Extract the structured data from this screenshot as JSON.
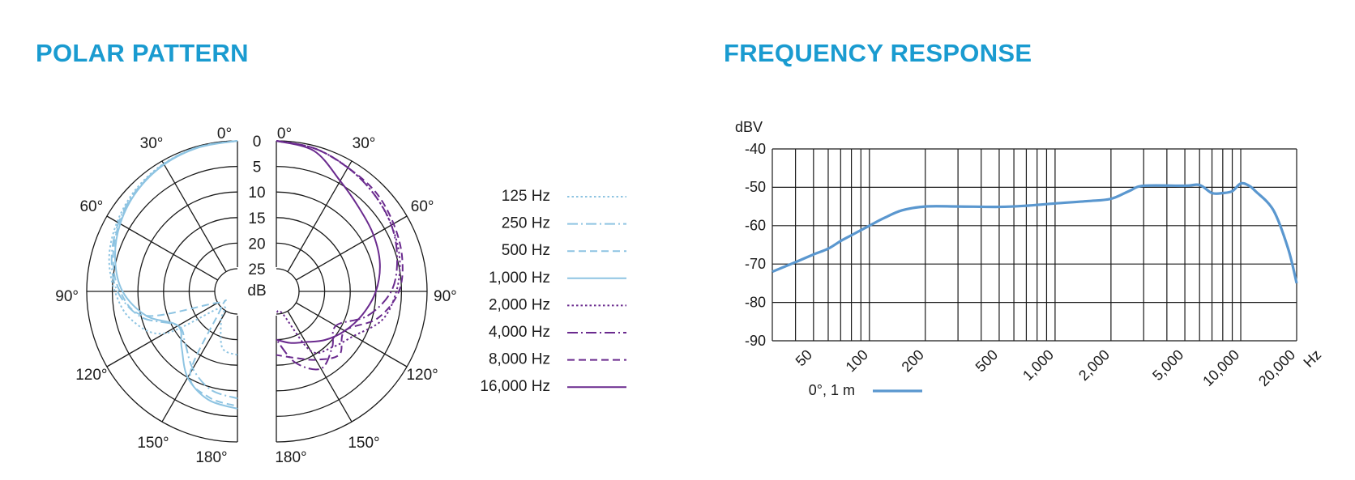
{
  "polar_pattern": {
    "title": "POLAR PATTERN"
  },
  "frequency_response": {
    "title": "FREQUENCY RESPONSE"
  },
  "colors": {
    "title": "#1a9bd0",
    "light_blue": "#8ec4e2",
    "purple": "#6a2a8e",
    "response_line": "#5a97cf",
    "grid": "#1a1a1a"
  },
  "chart_data": [
    {
      "type": "polar",
      "title": "POLAR PATTERN",
      "radial_unit": "dB",
      "radial_ticks": [
        "0",
        "5",
        "10",
        "15",
        "20",
        "25"
      ],
      "angle_labels": {
        "left": [
          "0°",
          "30°",
          "60°",
          "90°",
          "120°",
          "150°",
          "180°"
        ],
        "right": [
          "0°",
          "30°",
          "60°",
          "90°",
          "120°",
          "150°",
          "180°"
        ]
      },
      "series": [
        {
          "name": "125 Hz",
          "side": "left",
          "style": "dotted",
          "color": "#8ec4e2",
          "angles": [
            0,
            15,
            30,
            45,
            60,
            75,
            90,
            105,
            120,
            135,
            150,
            165,
            180
          ],
          "db": [
            0,
            0.2,
            0.6,
            1.3,
            2.3,
            3.5,
            5.5,
            8,
            13,
            25,
            23,
            18,
            17
          ]
        },
        {
          "name": "250 Hz",
          "side": "left",
          "style": "dashdot",
          "color": "#8ec4e2",
          "angles": [
            0,
            15,
            30,
            45,
            60,
            75,
            90,
            105,
            120,
            135,
            150,
            165,
            180
          ],
          "db": [
            0,
            0.2,
            0.7,
            1.5,
            2.6,
            4,
            6,
            10,
            16,
            15,
            12,
            9.5,
            8.5
          ]
        },
        {
          "name": "500 Hz",
          "side": "left",
          "style": "dashed",
          "color": "#8ec4e2",
          "angles": [
            0,
            15,
            30,
            45,
            60,
            75,
            90,
            105,
            120,
            135,
            150,
            165,
            180
          ],
          "db": [
            0,
            0.2,
            0.7,
            1.6,
            2.8,
            4.3,
            6.5,
            11,
            25,
            25,
            11,
            8,
            7
          ]
        },
        {
          "name": "1,000 Hz",
          "side": "left",
          "style": "solid",
          "color": "#8ec4e2",
          "angles": [
            0,
            15,
            30,
            45,
            60,
            75,
            90,
            105,
            120,
            135,
            150,
            165,
            180
          ],
          "db": [
            0,
            0.3,
            0.8,
            1.7,
            3,
            4.7,
            7,
            11,
            16,
            14,
            10,
            7.5,
            6.5
          ]
        },
        {
          "name": "2,000 Hz",
          "side": "right",
          "style": "dotted",
          "color": "#6a2a8e",
          "angles": [
            0,
            15,
            30,
            45,
            60,
            75,
            90,
            105,
            120,
            135,
            150,
            165,
            180
          ],
          "db": [
            0,
            0.5,
            1.5,
            2.5,
            3.5,
            4.5,
            6,
            8,
            12,
            14,
            16,
            25,
            25
          ]
        },
        {
          "name": "4,000 Hz",
          "side": "right",
          "style": "dashdot",
          "color": "#6a2a8e",
          "angles": [
            0,
            15,
            30,
            45,
            60,
            75,
            90,
            105,
            120,
            135,
            150,
            165,
            180
          ],
          "db": [
            0,
            0.5,
            1.5,
            2.5,
            3.5,
            5,
            7,
            11,
            16,
            14,
            12,
            15,
            20
          ]
        },
        {
          "name": "8,000 Hz",
          "side": "right",
          "style": "dashed",
          "color": "#6a2a8e",
          "angles": [
            0,
            15,
            30,
            45,
            60,
            75,
            90,
            105,
            120,
            135,
            150,
            165,
            180
          ],
          "db": [
            0,
            0.5,
            1.5,
            2,
            3,
            4,
            5.5,
            9,
            14,
            12,
            14,
            16,
            17
          ]
        },
        {
          "name": "16,000 Hz",
          "side": "right",
          "style": "solid",
          "color": "#6a2a8e",
          "angles": [
            0,
            15,
            30,
            45,
            60,
            75,
            90,
            105,
            120,
            135,
            150,
            165,
            180
          ],
          "db": [
            0,
            1,
            4.5,
            6.5,
            7.5,
            8.5,
            10,
            12,
            14,
            16,
            18,
            19,
            20
          ]
        }
      ]
    },
    {
      "type": "line",
      "title": "FREQUENCY RESPONSE",
      "xscale": "log",
      "xlabel": "Hz",
      "ylabel": "dBV",
      "xlim": [
        30,
        20000
      ],
      "ylim": [
        -90,
        -40
      ],
      "grid": true,
      "yticks": [
        -40,
        -50,
        -60,
        -70,
        -80,
        -90
      ],
      "ytick_labels": [
        "-40",
        "-50",
        "-60",
        "-70",
        "-80",
        "-90"
      ],
      "xticks": [
        50,
        100,
        200,
        500,
        1000,
        2000,
        5000,
        10000,
        20000
      ],
      "xtick_labels": [
        "50",
        "100",
        "200",
        "500",
        "1,000",
        "2,000",
        "5,000",
        "10,000",
        "20,000"
      ],
      "legend_position": "bottom-left",
      "series": [
        {
          "name": "0°, 1 m",
          "color": "#5a97cf",
          "x": [
            30,
            40,
            50,
            60,
            70,
            80,
            100,
            120,
            150,
            200,
            300,
            500,
            700,
            1000,
            1500,
            2000,
            2500,
            3000,
            5000,
            6000,
            7000,
            8000,
            9000,
            10000,
            11000,
            12000,
            15000,
            18000,
            20000
          ],
          "y": [
            -72,
            -69.5,
            -67.5,
            -66,
            -64,
            -62.5,
            -60,
            -58,
            -56,
            -55,
            -55,
            -55.1,
            -54.8,
            -54.2,
            -53.6,
            -53,
            -51,
            -49.6,
            -49.6,
            -49.4,
            -51.5,
            -51.5,
            -51,
            -49,
            -49.5,
            -51,
            -56,
            -66,
            -75
          ]
        }
      ]
    }
  ]
}
